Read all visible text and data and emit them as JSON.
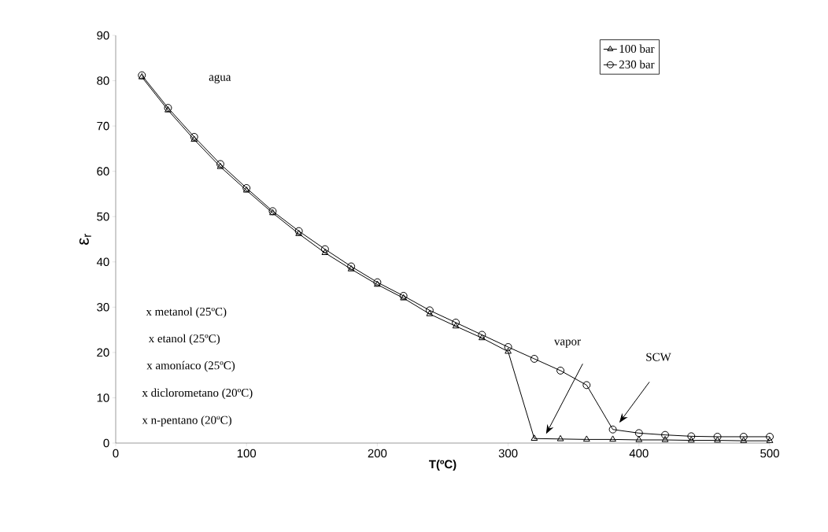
{
  "chart_data": {
    "type": "line",
    "xlabel": "T(ºC)",
    "ylabel": "ε$_{r}$",
    "x": [
      20,
      40,
      60,
      80,
      100,
      120,
      140,
      160,
      180,
      200,
      220,
      240,
      260,
      280,
      300,
      320,
      340,
      360,
      380,
      400,
      420,
      440,
      460,
      480,
      500
    ],
    "series": [
      {
        "name": "100 bar",
        "color": "#000000",
        "marker": "triangle",
        "values": [
          80.8,
          73.5,
          67,
          61,
          55.8,
          50.8,
          46.2,
          42,
          38.4,
          35,
          32,
          28.5,
          25.8,
          23.2,
          20.2,
          1,
          0.9,
          0.8,
          0.8,
          0.7,
          0.7,
          0.6,
          0.6,
          0.5,
          0.5
        ]
      },
      {
        "name": "230 bar",
        "color": "#000000",
        "marker": "circle",
        "values": [
          81.2,
          74,
          67.6,
          61.6,
          56.3,
          51.2,
          46.8,
          42.8,
          39,
          35.5,
          32.5,
          29.3,
          26.6,
          23.9,
          21.2,
          18.6,
          16,
          12.8,
          3,
          2.2,
          1.8,
          1.5,
          1.4,
          1.4,
          1.4
        ]
      }
    ],
    "xlim": [
      0,
      500
    ],
    "xticks": [
      0,
      100,
      200,
      300,
      400,
      500
    ],
    "ylim": [
      0,
      90
    ],
    "yticks": [
      0,
      10,
      20,
      30,
      40,
      50,
      60,
      70,
      80,
      90
    ],
    "grid": false,
    "legend": "top right",
    "line_style": "solid",
    "annotations": [
      "agua",
      "x metanol (25ºC)",
      "x etanol (25ºC)",
      "x amoníaco (25ºC)",
      "x diclorometano (20ºC)",
      "x n-pentano (20ºC)",
      "vapor",
      "SCW"
    ]
  }
}
